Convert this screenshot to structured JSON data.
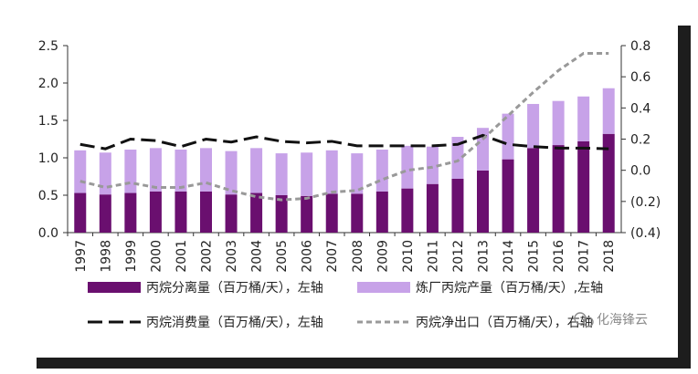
{
  "chart_data": {
    "type": "bar",
    "categories": [
      "1997",
      "1998",
      "1999",
      "2000",
      "2001",
      "2002",
      "2003",
      "2004",
      "2005",
      "2006",
      "2007",
      "2008",
      "2009",
      "2010",
      "2011",
      "2012",
      "2013",
      "2014",
      "2015",
      "2016",
      "2017",
      "2018"
    ],
    "series": [
      {
        "name": "丙烷分离量（百万桶/天），左轴",
        "type": "bar-stack",
        "axis": "left",
        "color": "#6a0f6f",
        "values": [
          0.53,
          0.51,
          0.53,
          0.55,
          0.55,
          0.55,
          0.51,
          0.53,
          0.5,
          0.49,
          0.52,
          0.52,
          0.55,
          0.59,
          0.65,
          0.72,
          0.83,
          0.98,
          1.13,
          1.17,
          1.22,
          1.32
        ]
      },
      {
        "name": "炼厂丙烷产量（百万桶/天）,左轴",
        "type": "bar-stack",
        "axis": "left",
        "color": "#c7a2e8",
        "values": [
          0.57,
          0.56,
          0.58,
          0.58,
          0.56,
          0.58,
          0.58,
          0.6,
          0.56,
          0.58,
          0.58,
          0.54,
          0.56,
          0.57,
          0.5,
          0.56,
          0.57,
          0.61,
          0.59,
          0.59,
          0.6,
          0.61
        ]
      },
      {
        "name": "丙烷消费量（百万桶/天），左轴",
        "type": "line",
        "axis": "left",
        "color": "#111111",
        "dash": "long",
        "values": [
          1.18,
          1.12,
          1.25,
          1.23,
          1.15,
          1.25,
          1.21,
          1.28,
          1.22,
          1.2,
          1.22,
          1.16,
          1.16,
          1.16,
          1.16,
          1.18,
          1.3,
          1.18,
          1.15,
          1.13,
          1.13,
          1.12
        ]
      },
      {
        "name": "丙烷净出口（百万桶/天），右轴",
        "type": "line",
        "axis": "right",
        "color": "#999999",
        "dash": "short",
        "values": [
          -0.07,
          -0.11,
          -0.08,
          -0.11,
          -0.11,
          -0.08,
          -0.13,
          -0.17,
          -0.19,
          -0.18,
          -0.14,
          -0.13,
          -0.06,
          0.0,
          0.02,
          0.06,
          0.2,
          0.35,
          0.5,
          0.64,
          0.75,
          0.75
        ]
      }
    ],
    "y_left": {
      "ticks": [
        "0.0",
        "0.5",
        "1.0",
        "1.5",
        "2.0",
        "2.5"
      ],
      "ylim": [
        0,
        2.5
      ]
    },
    "y_right": {
      "ticks": [
        "(0.4)",
        "(0.2)",
        "0.0",
        "0.2",
        "0.4",
        "0.6",
        "0.8"
      ],
      "ylim": [
        -0.4,
        0.8
      ]
    },
    "grid": false,
    "legend_position": "bottom"
  },
  "watermark": {
    "text": "化海锋云",
    "icon": "wechat-icon"
  }
}
